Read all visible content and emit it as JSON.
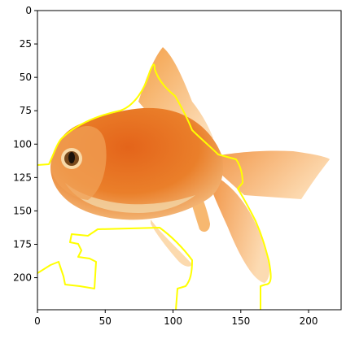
{
  "figure": {
    "type": "image-plot",
    "image_subject": "goldfish photograph with yellow segmentation contour",
    "axes": {
      "x": {
        "range": [
          0,
          224
        ],
        "ticks": [
          0,
          50,
          100,
          150,
          200
        ],
        "tick_labels": [
          "0",
          "50",
          "100",
          "150",
          "200"
        ]
      },
      "y": {
        "range": [
          0,
          224
        ],
        "inverted": true,
        "ticks": [
          0,
          25,
          50,
          75,
          100,
          125,
          150,
          175,
          200
        ],
        "tick_labels": [
          "0",
          "25",
          "50",
          "75",
          "100",
          "125",
          "150",
          "175",
          "200"
        ]
      }
    },
    "contour_color": "#ffff00"
  },
  "colors": {
    "fish_dark": "#cc4a0c",
    "fish_mid": "#e9741f",
    "fish_light": "#f6b061",
    "fin_light": "#fbd3a0",
    "belly": "#f2d6a6",
    "eye": "#1a120a"
  }
}
